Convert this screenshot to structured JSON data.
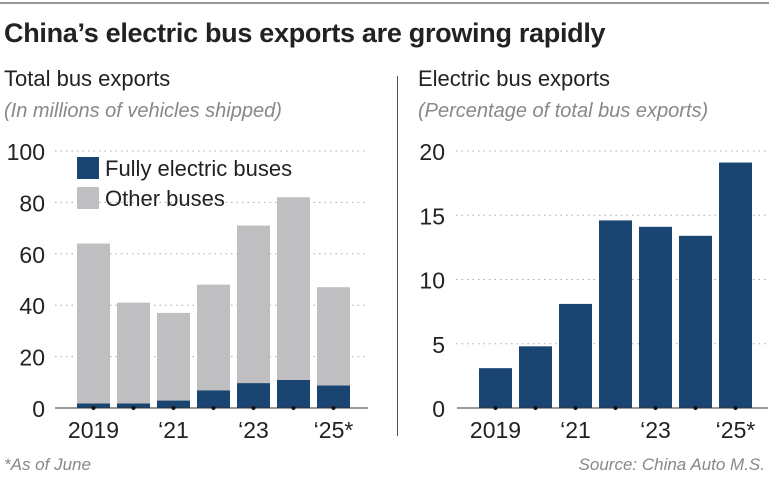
{
  "title": "China’s electric bus exports are growing rapidly",
  "footnote": "*As of June",
  "source": "Source: China Auto M.S.",
  "colors": {
    "electric": "#1a4572",
    "other": "#bfbfc1"
  },
  "chart_data": [
    {
      "type": "bar",
      "stacked": true,
      "title": "Total bus exports",
      "subtitle": "(In millions of vehicles shipped)",
      "categories": [
        "2019",
        "2020",
        "2021",
        "2022",
        "2023",
        "2024",
        "2025*"
      ],
      "tick_labels": [
        "2019",
        "",
        "‘21",
        "",
        "‘23",
        "",
        "‘25*"
      ],
      "ylim": [
        0,
        100
      ],
      "yticks": [
        0,
        20,
        40,
        60,
        80,
        100
      ],
      "grid": true,
      "legend": "top-left",
      "series": [
        {
          "name": "Fully electric buses",
          "values": [
            1.8,
            1.8,
            2.9,
            6.9,
            9.7,
            10.9,
            8.8
          ]
        },
        {
          "name": "Other buses",
          "values": [
            62.2,
            39.2,
            34.1,
            41.1,
            61.3,
            71.1,
            38.2
          ]
        }
      ],
      "totals": [
        64,
        41,
        37,
        48,
        71,
        82,
        47
      ]
    },
    {
      "type": "bar",
      "title": "Electric bus exports",
      "subtitle": "(Percentage of total bus exports)",
      "categories": [
        "2019",
        "2020",
        "2021",
        "2022",
        "2023",
        "2024",
        "2025*"
      ],
      "tick_labels": [
        "2019",
        "",
        "‘21",
        "",
        "‘23",
        "",
        "‘25*"
      ],
      "ylim": [
        0,
        20
      ],
      "yticks": [
        0,
        5,
        10,
        15,
        20
      ],
      "grid": true,
      "values": [
        3.1,
        4.8,
        8.1,
        14.6,
        14.1,
        13.4,
        19.1
      ]
    }
  ]
}
